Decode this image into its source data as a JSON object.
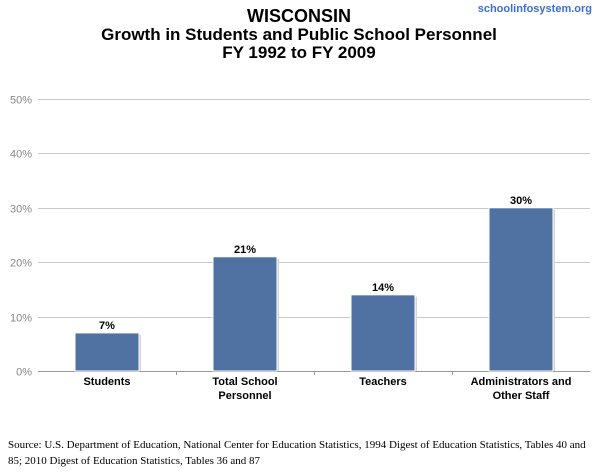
{
  "site_link": "schoolinfosystem.org",
  "source": "Source: U.S. Department of Education, National Center for Education Statistics, 1994 Digest of Education Statistics, Tables 40 and 85; 2010 Digest of Education Statistics, Tables 36 and 87",
  "chart_data": {
    "type": "bar",
    "title": "WISCONSIN",
    "subtitle": "Growth in Students and Public School Personnel",
    "subtitle2": "FY 1992 to FY 2009",
    "xlabel": "",
    "ylabel": "",
    "categories": [
      [
        "Students"
      ],
      [
        "Total School",
        "Personnel"
      ],
      [
        "Teachers"
      ],
      [
        "Administrators and",
        "Other Staff"
      ]
    ],
    "values": [
      7,
      21,
      14,
      30
    ],
    "value_labels": [
      "7%",
      "21%",
      "14%",
      "30%"
    ],
    "ylim": [
      0,
      50
    ],
    "yticks": [
      0,
      10,
      20,
      30,
      40,
      50
    ],
    "ytick_labels": [
      "0%",
      "10%",
      "20%",
      "30%",
      "40%",
      "50%"
    ],
    "grid": true,
    "legend": "none",
    "bar_color": "#4f72a3",
    "grid_color": "#c8c8c8",
    "tick_label_color": "#888888"
  }
}
